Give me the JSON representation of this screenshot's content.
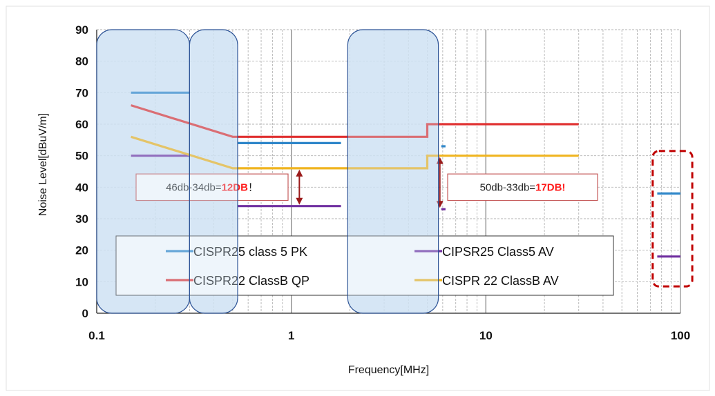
{
  "chart_data": {
    "type": "line",
    "xlabel": "Frequency[MHz]",
    "ylabel": "Noise Level[dBuV/m]",
    "xscale": "log",
    "xlim": [
      0.1,
      100
    ],
    "ylim": [
      0,
      90
    ],
    "xticks": [
      {
        "v": 0.1,
        "label": "0.1"
      },
      {
        "v": 1,
        "label": "1"
      },
      {
        "v": 10,
        "label": "10"
      },
      {
        "v": 100,
        "label": "100"
      }
    ],
    "yticks": [
      0,
      10,
      20,
      30,
      40,
      50,
      60,
      70,
      80,
      90
    ],
    "grid": true,
    "legend_position": "bottom-inside",
    "series": [
      {
        "name": "CISPR25 class 5 PK",
        "color": "#2e86c9",
        "segments": [
          [
            [
              0.15,
              70
            ],
            [
              0.3,
              70
            ]
          ],
          [
            [
              0.53,
              54
            ],
            [
              1.8,
              54
            ]
          ],
          [
            [
              5.9,
              53
            ],
            [
              6.2,
              53
            ]
          ],
          [
            [
              76,
              38
            ],
            [
              100,
              38
            ]
          ]
        ]
      },
      {
        "name": "CIPSR25 Class5 AV",
        "color": "#7030a0",
        "segments": [
          [
            [
              0.15,
              50
            ],
            [
              0.3,
              50
            ]
          ],
          [
            [
              0.53,
              34
            ],
            [
              1.8,
              34
            ]
          ],
          [
            [
              5.9,
              33
            ],
            [
              6.2,
              33
            ]
          ],
          [
            [
              76,
              18
            ],
            [
              100,
              18
            ]
          ]
        ]
      },
      {
        "name": "CISPR22 ClassB QP",
        "color": "#e03030",
        "segments": [
          [
            [
              0.15,
              66
            ],
            [
              0.5,
              56
            ],
            [
              5,
              56
            ],
            [
              5,
              60
            ],
            [
              30,
              60
            ]
          ]
        ]
      },
      {
        "name": "CISPR 22 ClassB AV",
        "color": "#f0b41e",
        "segments": [
          [
            [
              0.15,
              56
            ],
            [
              0.5,
              46
            ],
            [
              5,
              46
            ],
            [
              5,
              50
            ],
            [
              30,
              50
            ]
          ]
        ]
      }
    ],
    "highlight_bands": [
      [
        0.1,
        0.3
      ],
      [
        0.3,
        0.53
      ],
      [
        1.95,
        5.7
      ]
    ],
    "annotations": [
      {
        "prefix": "46db-34db=",
        "highlight": "12DB",
        "suffix": "！",
        "arrow_x": 1.1,
        "arrow_y": [
          46,
          34
        ]
      },
      {
        "prefix": "50db-33db=",
        "highlight": "17DB!",
        "suffix": "",
        "arrow_x": 5.8,
        "arrow_y": [
          50,
          33
        ]
      }
    ],
    "dashed_box": {
      "x": [
        72,
        115
      ],
      "y": [
        8.5,
        51.5
      ]
    }
  },
  "colors": {
    "band_fill": "#cfe2f3",
    "band_stroke": "#2f5597",
    "arrow": "#9b1b1b",
    "dashed_box": "#c00000",
    "grid": "#b3b3b3"
  }
}
